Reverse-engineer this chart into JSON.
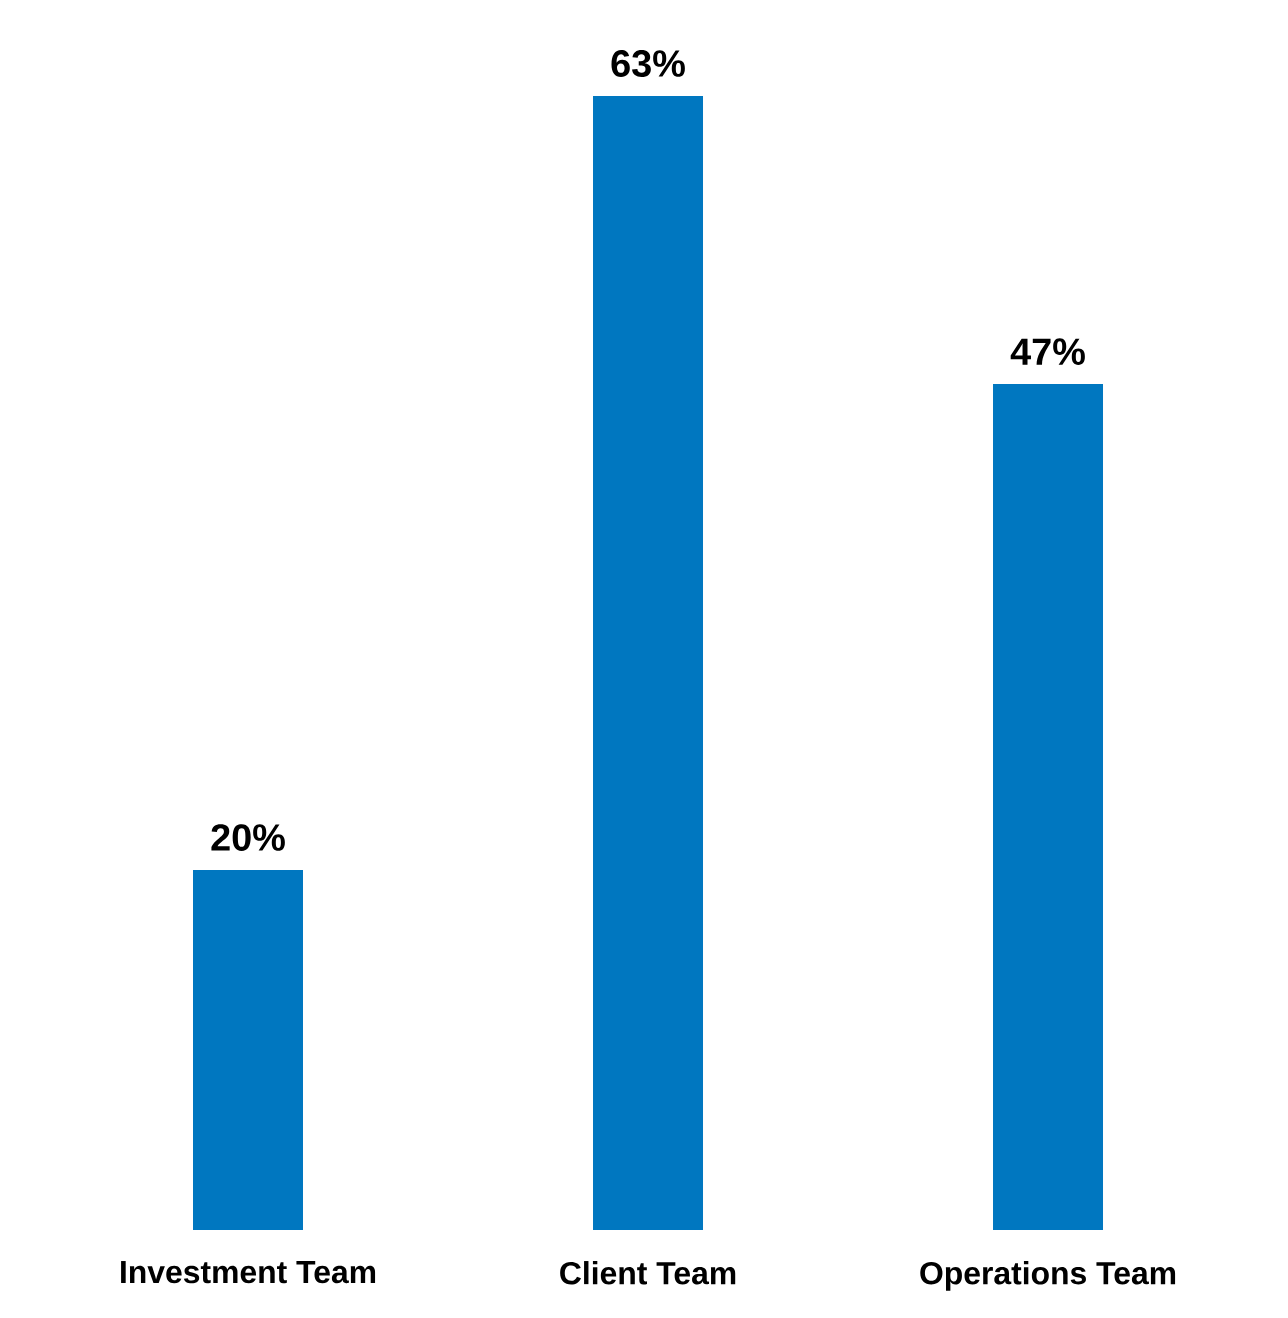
{
  "chart_data": {
    "type": "bar",
    "categories": [
      "Investment Team",
      "Client Team",
      "Operations Team"
    ],
    "values": [
      20,
      63,
      47
    ],
    "value_labels": [
      "20%",
      "63%",
      "47%"
    ],
    "color": "#0077c0"
  }
}
